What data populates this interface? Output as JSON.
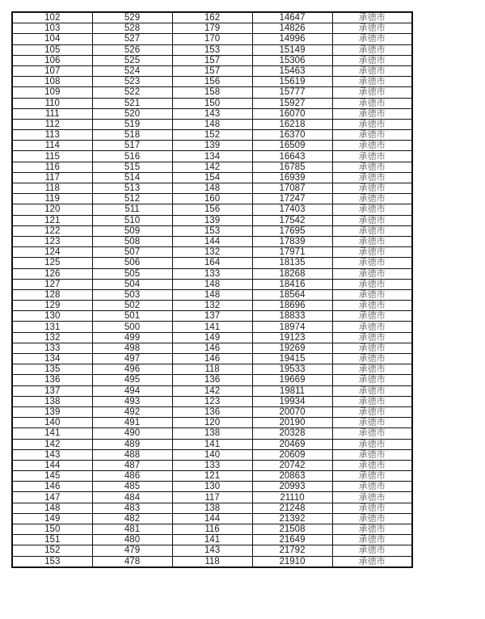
{
  "table": {
    "rows": [
      [
        "102",
        "529",
        "162",
        "14647",
        "承德市"
      ],
      [
        "103",
        "528",
        "179",
        "14826",
        "承德市"
      ],
      [
        "104",
        "527",
        "170",
        "14996",
        "承德市"
      ],
      [
        "105",
        "526",
        "153",
        "15149",
        "承德市"
      ],
      [
        "106",
        "525",
        "157",
        "15306",
        "承德市"
      ],
      [
        "107",
        "524",
        "157",
        "15463",
        "承德市"
      ],
      [
        "108",
        "523",
        "156",
        "15619",
        "承德市"
      ],
      [
        "109",
        "522",
        "158",
        "15777",
        "承德市"
      ],
      [
        "110",
        "521",
        "150",
        "15927",
        "承德市"
      ],
      [
        "111",
        "520",
        "143",
        "16070",
        "承德市"
      ],
      [
        "112",
        "519",
        "148",
        "16218",
        "承德市"
      ],
      [
        "113",
        "518",
        "152",
        "16370",
        "承德市"
      ],
      [
        "114",
        "517",
        "139",
        "16509",
        "承德市"
      ],
      [
        "115",
        "516",
        "134",
        "16643",
        "承德市"
      ],
      [
        "116",
        "515",
        "142",
        "16785",
        "承德市"
      ],
      [
        "117",
        "514",
        "154",
        "16939",
        "承德市"
      ],
      [
        "118",
        "513",
        "148",
        "17087",
        "承德市"
      ],
      [
        "119",
        "512",
        "160",
        "17247",
        "承德市"
      ],
      [
        "120",
        "511",
        "156",
        "17403",
        "承德市"
      ],
      [
        "121",
        "510",
        "139",
        "17542",
        "承德市"
      ],
      [
        "122",
        "509",
        "153",
        "17695",
        "承德市"
      ],
      [
        "123",
        "508",
        "144",
        "17839",
        "承德市"
      ],
      [
        "124",
        "507",
        "132",
        "17971",
        "承德市"
      ],
      [
        "125",
        "506",
        "164",
        "18135",
        "承德市"
      ],
      [
        "126",
        "505",
        "133",
        "18268",
        "承德市"
      ],
      [
        "127",
        "504",
        "148",
        "18416",
        "承德市"
      ],
      [
        "128",
        "503",
        "148",
        "18564",
        "承德市"
      ],
      [
        "129",
        "502",
        "132",
        "18696",
        "承德市"
      ],
      [
        "130",
        "501",
        "137",
        "18833",
        "承德市"
      ],
      [
        "131",
        "500",
        "141",
        "18974",
        "承德市"
      ],
      [
        "132",
        "499",
        "149",
        "19123",
        "承德市"
      ],
      [
        "133",
        "498",
        "146",
        "19269",
        "承德市"
      ],
      [
        "134",
        "497",
        "146",
        "19415",
        "承德市"
      ],
      [
        "135",
        "496",
        "118",
        "19533",
        "承德市"
      ],
      [
        "136",
        "495",
        "136",
        "19669",
        "承德市"
      ],
      [
        "137",
        "494",
        "142",
        "19811",
        "承德市"
      ],
      [
        "138",
        "493",
        "123",
        "19934",
        "承德市"
      ],
      [
        "139",
        "492",
        "136",
        "20070",
        "承德市"
      ],
      [
        "140",
        "491",
        "120",
        "20190",
        "承德市"
      ],
      [
        "141",
        "490",
        "138",
        "20328",
        "承德市"
      ],
      [
        "142",
        "489",
        "141",
        "20469",
        "承德市"
      ],
      [
        "143",
        "488",
        "140",
        "20609",
        "承德市"
      ],
      [
        "144",
        "487",
        "133",
        "20742",
        "承德市"
      ],
      [
        "145",
        "486",
        "121",
        "20863",
        "承德市"
      ],
      [
        "146",
        "485",
        "130",
        "20993",
        "承德市"
      ],
      [
        "147",
        "484",
        "117",
        "21110",
        "承德市"
      ],
      [
        "148",
        "483",
        "138",
        "21248",
        "承德市"
      ],
      [
        "149",
        "482",
        "144",
        "21392",
        "承德市"
      ],
      [
        "150",
        "481",
        "116",
        "21508",
        "承德市"
      ],
      [
        "151",
        "480",
        "141",
        "21649",
        "承德市"
      ],
      [
        "152",
        "479",
        "143",
        "21792",
        "承德市"
      ],
      [
        "153",
        "478",
        "118",
        "21910",
        "承德市"
      ]
    ]
  }
}
